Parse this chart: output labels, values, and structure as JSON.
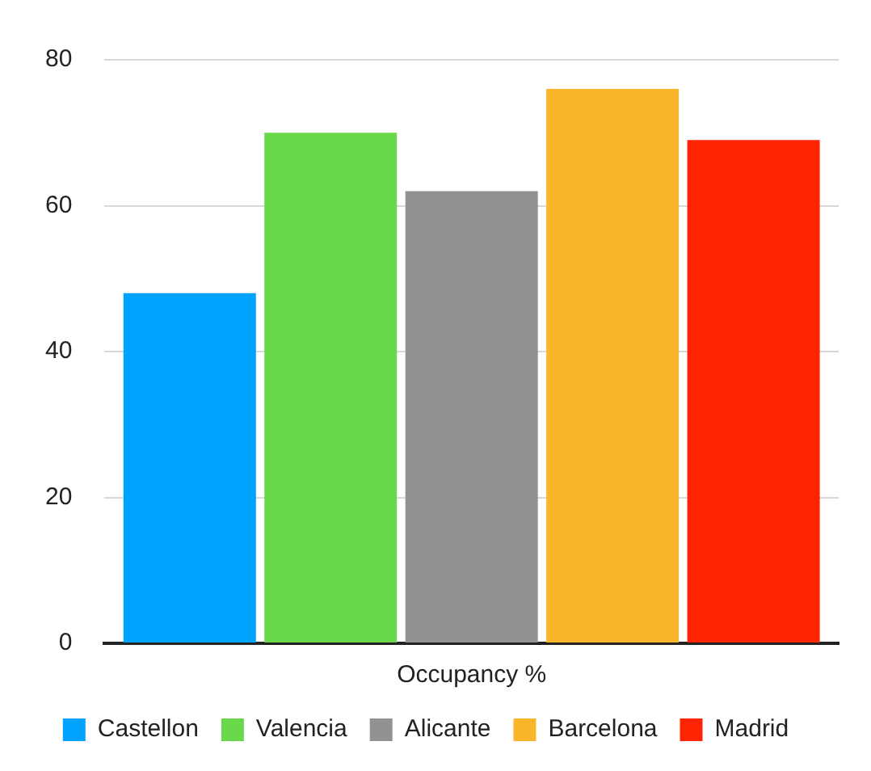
{
  "chart_data": {
    "type": "bar",
    "categories": [
      "Occupancy %"
    ],
    "series": [
      {
        "name": "Castellon",
        "color": "#00a2ff",
        "values": [
          48
        ]
      },
      {
        "name": "Valencia",
        "color": "#69d84b",
        "values": [
          70
        ]
      },
      {
        "name": "Alicante",
        "color": "#929292",
        "values": [
          62
        ]
      },
      {
        "name": "Barcelona",
        "color": "#f9b62a",
        "values": [
          76
        ]
      },
      {
        "name": "Madrid",
        "color": "#ff2500",
        "values": [
          69
        ]
      }
    ],
    "ylim": [
      0,
      80
    ],
    "yticks": [
      0,
      20,
      40,
      60,
      80
    ],
    "grid": "y",
    "legend": "bottom"
  }
}
